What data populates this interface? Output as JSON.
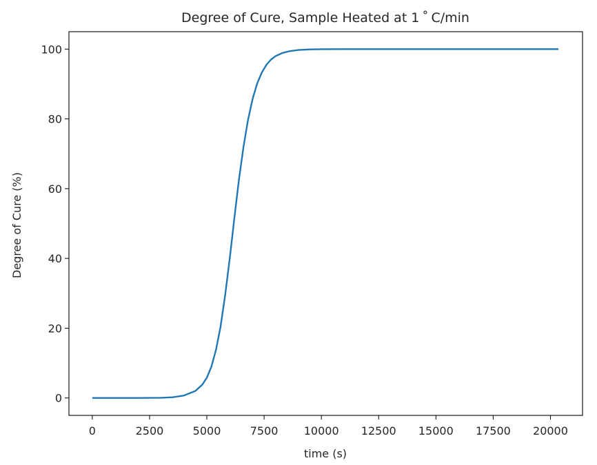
{
  "chart_data": {
    "type": "line",
    "title": "Degree of Cure, Sample Heated at 1$^\\circ$C/min",
    "title_display": "Degree of Cure, Sample Heated at 1 ˚ C/min",
    "xlabel": "time (s)",
    "ylabel": "Degree of Cure (%)",
    "xlim": [
      -1020,
      21400
    ],
    "ylim": [
      -5,
      105
    ],
    "xticks": [
      0,
      2500,
      5000,
      7500,
      10000,
      12500,
      15000,
      17500,
      20000
    ],
    "yticks": [
      0,
      20,
      40,
      60,
      80,
      100
    ],
    "grid": false,
    "legend": "none",
    "series": [
      {
        "color": "#1f77b4",
        "x": [
          0,
          1000,
          2000,
          3000,
          3500,
          4000,
          4500,
          4800,
          5000,
          5200,
          5400,
          5600,
          5800,
          6000,
          6200,
          6400,
          6600,
          6800,
          7000,
          7200,
          7400,
          7600,
          7800,
          8000,
          8300,
          8600,
          9000,
          9500,
          10000,
          11000,
          12500,
          15000,
          17500,
          20000,
          20350
        ],
        "y": [
          0,
          0,
          0,
          0.05,
          0.2,
          0.7,
          2.0,
          3.8,
          5.8,
          9.0,
          13.8,
          20.5,
          29.5,
          40.0,
          51.5,
          62.5,
          72.0,
          79.8,
          85.8,
          90.2,
          93.3,
          95.5,
          97.0,
          98.0,
          98.9,
          99.4,
          99.75,
          99.93,
          99.98,
          100,
          100,
          100,
          100,
          100,
          100
        ]
      }
    ]
  }
}
